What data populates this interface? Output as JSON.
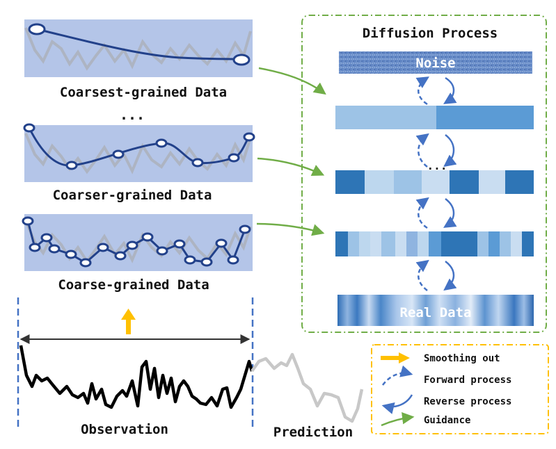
{
  "diagram": {
    "diffusion_title": "Diffusion Process",
    "noise_label": "Noise",
    "real_data_label": "Real Data",
    "ellipsis": "...",
    "ellipsis_left": "...",
    "labels": {
      "coarsest": "Coarsest-grained Data",
      "coarser": "Coarser-grained Data",
      "coarse": "Coarse-grained Data",
      "observation": "Observation",
      "prediction": "Prediction"
    },
    "legend": [
      {
        "icon": "smoothing-arrow-icon",
        "label": "Smoothing out"
      },
      {
        "icon": "forward-process-icon",
        "label": "Forward process"
      },
      {
        "icon": "reverse-process-icon",
        "label": "Reverse process"
      },
      {
        "icon": "guidance-arrow-icon",
        "label": "Guidance"
      }
    ],
    "colors": {
      "panel_bg": "#b4c5e8",
      "curve": "#22418a",
      "guidance": "#70ad47",
      "smoothing": "#ffc000",
      "process_arrow": "#4472c4",
      "legend_border": "#ffc000",
      "diffusion_border": "#70ad47",
      "observation_line": "#000000",
      "prediction_line": "#c8c8c8",
      "window_dash": "#4472c4"
    }
  }
}
